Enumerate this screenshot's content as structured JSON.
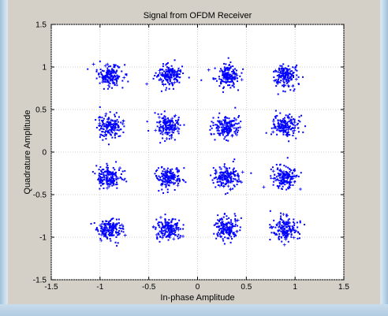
{
  "chart_data": {
    "type": "scatter",
    "title": "Signal from OFDM Receiver",
    "xlabel": "In-phase Amplitude",
    "ylabel": "Quadrature Amplitude",
    "xlim": [
      -1.5,
      1.5
    ],
    "ylim": [
      -1.5,
      1.5
    ],
    "xticks": [
      "-1.5",
      "-1",
      "-0.5",
      "0",
      "0.5",
      "1",
      "1.5"
    ],
    "yticks": [
      "1.5",
      "1",
      "0.5",
      "0",
      "-0.5",
      "-1",
      "-1.5"
    ],
    "grid": true,
    "marker_color": "#0000ff",
    "series": [
      {
        "cluster_centers": [
          [
            -0.9,
            0.9
          ],
          [
            -0.3,
            0.9
          ],
          [
            0.3,
            0.9
          ],
          [
            0.9,
            0.9
          ],
          [
            -0.9,
            0.3
          ],
          [
            -0.3,
            0.3
          ],
          [
            0.3,
            0.3
          ],
          [
            0.9,
            0.3
          ],
          [
            -0.9,
            -0.3
          ],
          [
            -0.3,
            -0.3
          ],
          [
            0.3,
            -0.3
          ],
          [
            0.9,
            -0.3
          ],
          [
            -0.9,
            -0.9
          ],
          [
            -0.3,
            -0.9
          ],
          [
            0.3,
            -0.9
          ],
          [
            0.9,
            -0.9
          ]
        ]
      }
    ]
  }
}
